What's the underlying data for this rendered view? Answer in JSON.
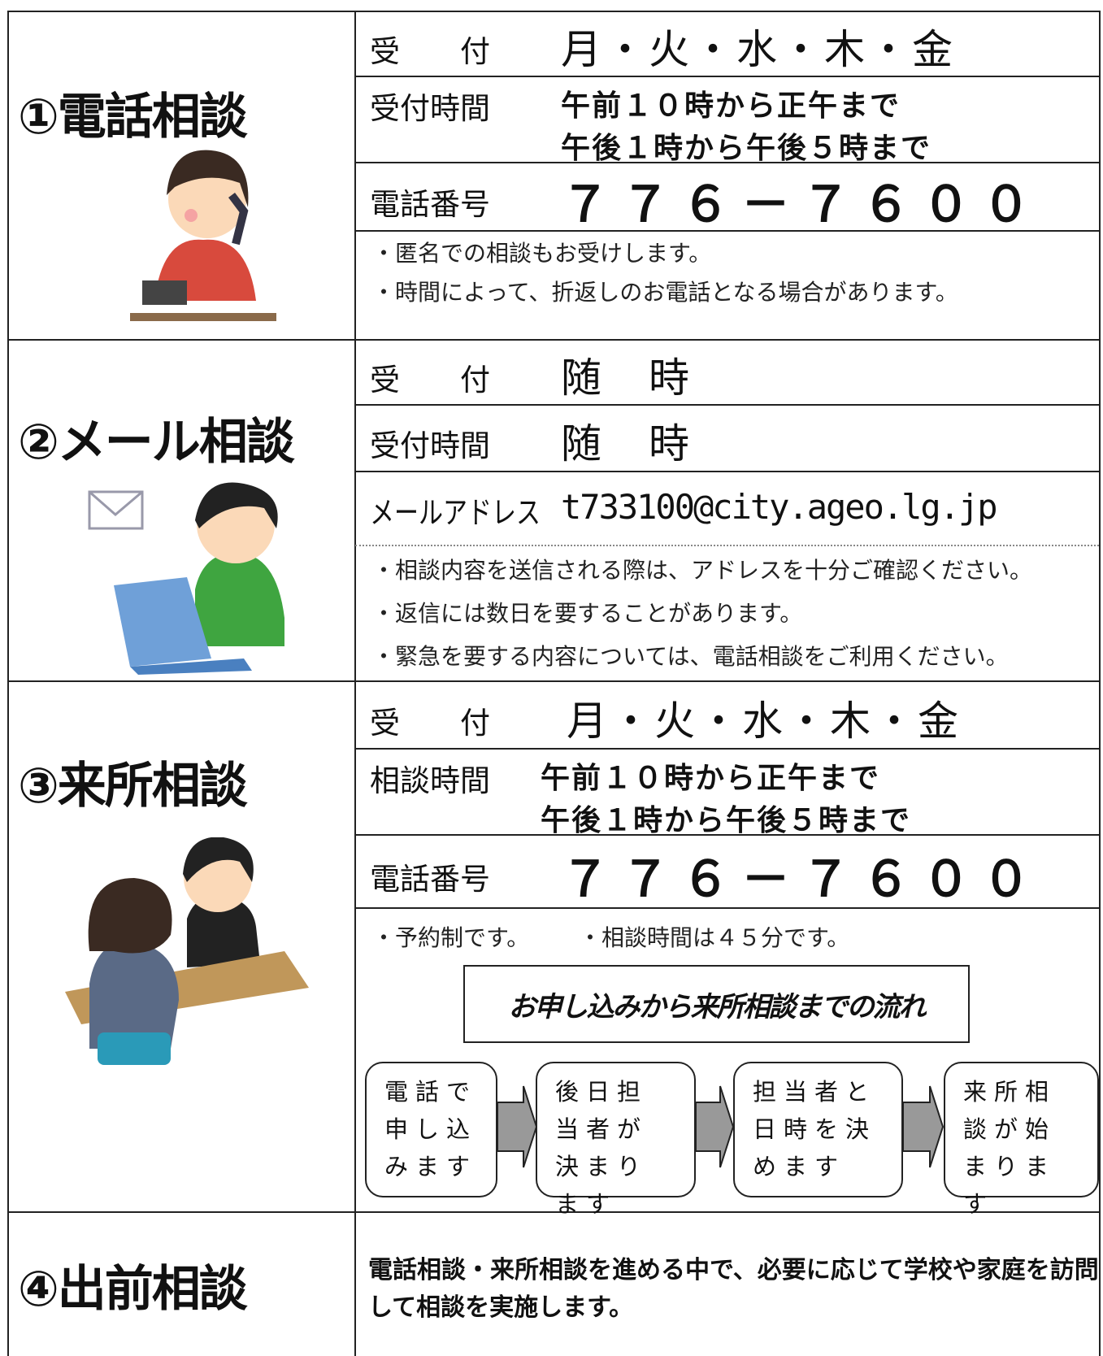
{
  "sections": [
    {
      "title": "①電話相談",
      "rows": [
        {
          "label": "受　　付",
          "value": [
            "月・火・水・木・金"
          ]
        },
        {
          "label": "受付時間",
          "value": [
            "午前１０時から正午まで",
            "午後１時から午後５時まで"
          ]
        },
        {
          "label": "電話番号",
          "value": [
            "７７６－７６００"
          ]
        }
      ],
      "notes": [
        "・匿名での相談もお受けします。",
        "・時間によって、折返しのお電話となる場合があります。"
      ]
    },
    {
      "title": "②メール相談",
      "rows": [
        {
          "label": "受　　付",
          "value": [
            "随　時"
          ]
        },
        {
          "label": "受付時間",
          "value": [
            "随　時"
          ]
        },
        {
          "label": "メールアドレス",
          "value": [
            "t733100@city.ageo.lg.jp"
          ]
        }
      ],
      "notes": [
        "・相談内容を送信される際は、アドレスを十分ご確認ください。",
        "・返信には数日を要することがあります。",
        "・緊急を要する内容については、電話相談をご利用ください。"
      ]
    },
    {
      "title": "③来所相談",
      "rows": [
        {
          "label": "受　　付",
          "value": [
            "月・火・水・木・金"
          ]
        },
        {
          "label": "相談時間",
          "value": [
            "午前１０時から正午まで",
            "午後１時から午後５時まで"
          ]
        },
        {
          "label": "電話番号",
          "value": [
            "７７６－７６００"
          ]
        }
      ],
      "notes": [
        "・予約制です。",
        "・相談時間は４５分です。"
      ],
      "flow_title": "お申し込みから来所相談までの流れ",
      "flow": [
        "電話で申し込みます",
        "後日担当者が決まります",
        "担当者と日時を決めます",
        "来所相談が始まります"
      ]
    },
    {
      "title": "④出前相談",
      "body": "電話相談・来所相談を進める中で、必要に応じて学校や家庭を訪問して相談を実施します。"
    }
  ]
}
